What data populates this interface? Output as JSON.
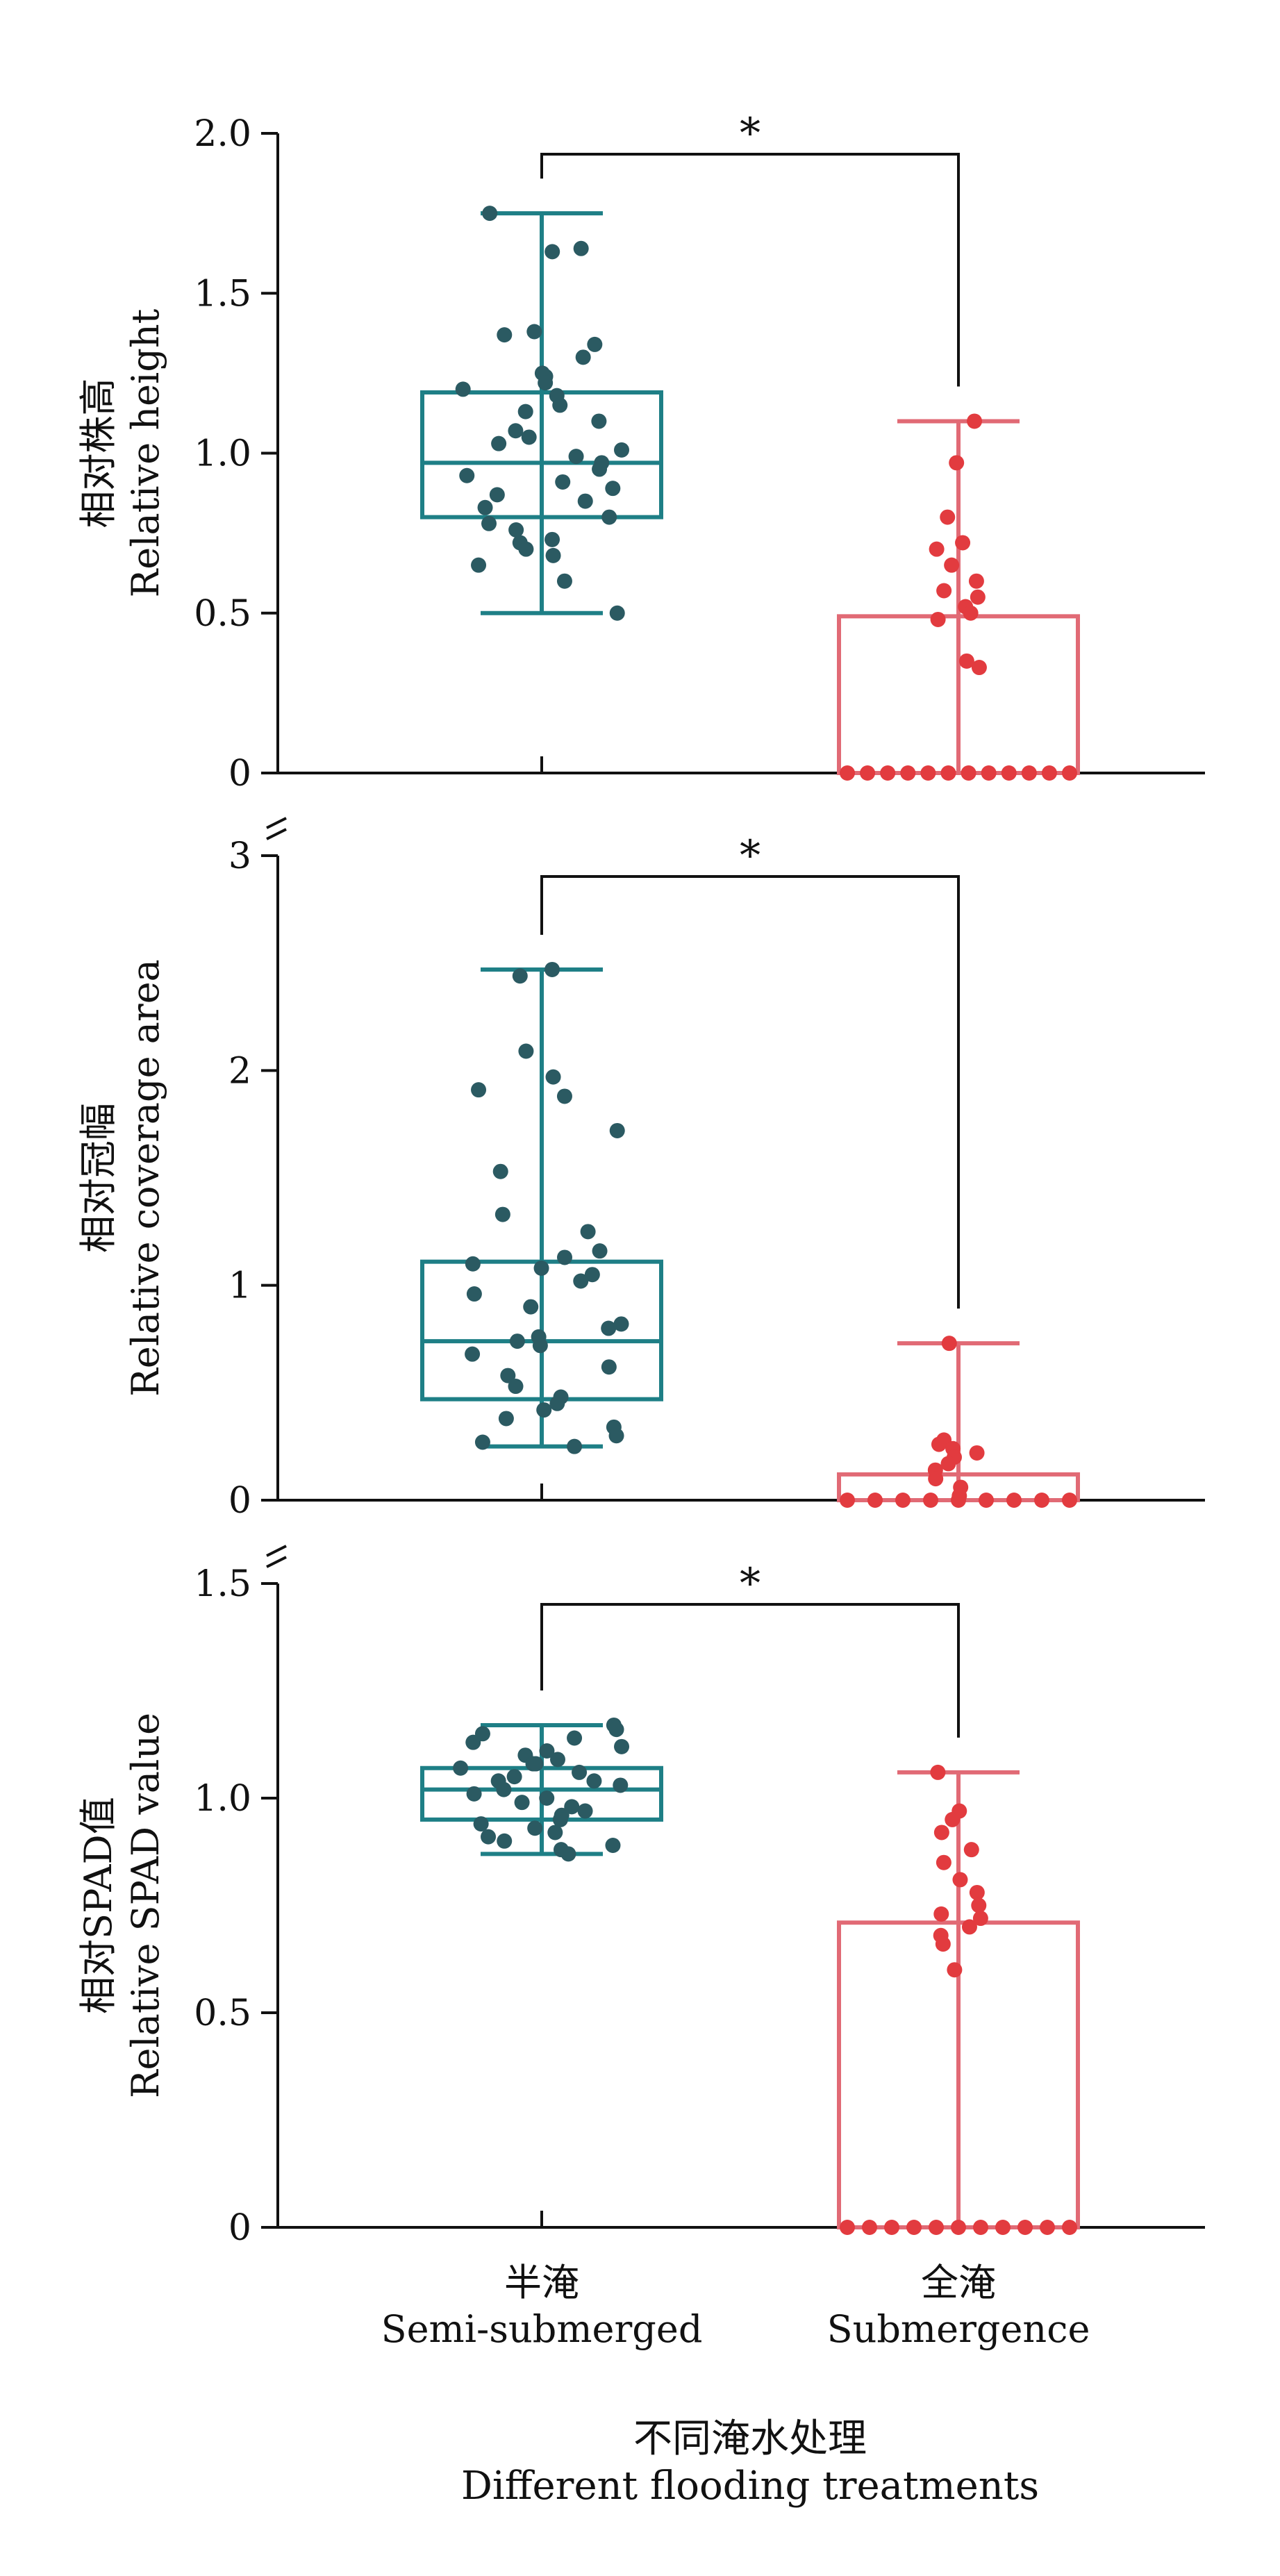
{
  "chart_data": [
    {
      "type": "box",
      "ylabel_zh": "相对株高",
      "ylabel_en": "Relative height",
      "ylim": [
        0,
        2.0
      ],
      "yticks": [
        "0",
        "0.5",
        "1.0",
        "1.5",
        "2.0"
      ],
      "ytick_values": [
        0,
        0.5,
        1.0,
        1.5,
        2.0
      ],
      "axis_break_below": false,
      "significance": "*",
      "groups": [
        {
          "name": "Semi-submerged",
          "box": {
            "q1": 0.8,
            "median": 0.97,
            "q3": 1.19,
            "whisker_low": 0.5,
            "whisker_high": 1.75
          },
          "points": [
            1.75,
            1.64,
            1.63,
            1.38,
            1.37,
            1.34,
            1.3,
            1.25,
            1.24,
            1.22,
            1.2,
            1.18,
            1.15,
            1.13,
            1.1,
            1.07,
            1.05,
            1.03,
            1.01,
            0.99,
            0.97,
            0.95,
            0.93,
            0.91,
            0.89,
            0.87,
            0.85,
            0.83,
            0.8,
            0.78,
            0.76,
            0.73,
            0.72,
            0.7,
            0.68,
            0.65,
            0.6,
            0.5
          ]
        },
        {
          "name": "Submergence",
          "box": {
            "q1": 0.0,
            "median": 0.0,
            "q3": 0.49,
            "whisker_low": 0.0,
            "whisker_high": 1.1
          },
          "points": [
            1.1,
            0.97,
            0.8,
            0.72,
            0.7,
            0.65,
            0.6,
            0.57,
            0.55,
            0.52,
            0.5,
            0.48,
            0.35,
            0.33,
            0,
            0,
            0,
            0,
            0,
            0,
            0,
            0,
            0,
            0,
            0,
            0
          ]
        }
      ]
    },
    {
      "type": "box",
      "ylabel_zh": "相对冠幅",
      "ylabel_en": "Relative coverage area",
      "ylim": [
        0,
        3
      ],
      "yticks": [
        "0",
        "1",
        "2",
        "3"
      ],
      "ytick_values": [
        0,
        1,
        2,
        3
      ],
      "axis_break_below": true,
      "significance": "*",
      "groups": [
        {
          "name": "Semi-submerged",
          "box": {
            "q1": 0.47,
            "median": 0.74,
            "q3": 1.11,
            "whisker_low": 0.25,
            "whisker_high": 2.47
          },
          "points": [
            2.47,
            2.44,
            2.09,
            1.97,
            1.91,
            1.88,
            1.72,
            1.53,
            1.33,
            1.25,
            1.16,
            1.13,
            1.1,
            1.08,
            1.05,
            1.02,
            0.96,
            0.9,
            0.82,
            0.8,
            0.76,
            0.74,
            0.72,
            0.68,
            0.62,
            0.58,
            0.53,
            0.48,
            0.45,
            0.42,
            0.38,
            0.34,
            0.3,
            0.27,
            0.25
          ]
        },
        {
          "name": "Submergence",
          "box": {
            "q1": 0.0,
            "median": 0.0,
            "q3": 0.12,
            "whisker_low": 0.0,
            "whisker_high": 0.73
          },
          "points": [
            0.73,
            0.28,
            0.26,
            0.24,
            0.22,
            0.2,
            0.17,
            0.14,
            0.1,
            0.06,
            0.02,
            0,
            0,
            0,
            0,
            0,
            0,
            0,
            0,
            0
          ]
        }
      ]
    },
    {
      "type": "box",
      "ylabel_zh": "相对SPAD值",
      "ylabel_en": "Relative SPAD value",
      "ylim": [
        0,
        1.5
      ],
      "yticks": [
        "0",
        "0.5",
        "1.0",
        "1.5"
      ],
      "ytick_values": [
        0,
        0.5,
        1.0,
        1.5
      ],
      "axis_break_below": true,
      "significance": "*",
      "groups": [
        {
          "name": "Semi-submerged",
          "box": {
            "q1": 0.95,
            "median": 1.02,
            "q3": 1.07,
            "whisker_low": 0.87,
            "whisker_high": 1.17
          },
          "points": [
            1.17,
            1.16,
            1.15,
            1.14,
            1.13,
            1.12,
            1.11,
            1.1,
            1.09,
            1.08,
            1.08,
            1.07,
            1.06,
            1.05,
            1.04,
            1.04,
            1.03,
            1.02,
            1.01,
            1.0,
            0.99,
            0.98,
            0.97,
            0.96,
            0.95,
            0.94,
            0.93,
            0.92,
            0.91,
            0.9,
            0.89,
            0.88,
            0.87
          ]
        },
        {
          "name": "Submergence",
          "box": {
            "q1": 0.0,
            "median": 0.0,
            "q3": 0.71,
            "whisker_low": 0.0,
            "whisker_high": 1.06
          },
          "points": [
            1.06,
            0.97,
            0.95,
            0.92,
            0.88,
            0.85,
            0.81,
            0.78,
            0.75,
            0.73,
            0.72,
            0.7,
            0.68,
            0.66,
            0.6,
            0,
            0,
            0,
            0,
            0,
            0,
            0,
            0,
            0,
            0,
            0
          ]
        }
      ]
    }
  ],
  "x_categories": [
    {
      "zh": "半淹",
      "en": "Semi-submerged"
    },
    {
      "zh": "全淹",
      "en": "Submergence"
    }
  ],
  "xlabel_zh": "不同淹水处理",
  "xlabel_en": "Different flooding treatments",
  "colors": {
    "semi_box": "#1e7f86",
    "semi_points": "#2b5a62",
    "sub_box": "#e16a75",
    "sub_points": "#e23b3f",
    "axis": "#111111"
  }
}
